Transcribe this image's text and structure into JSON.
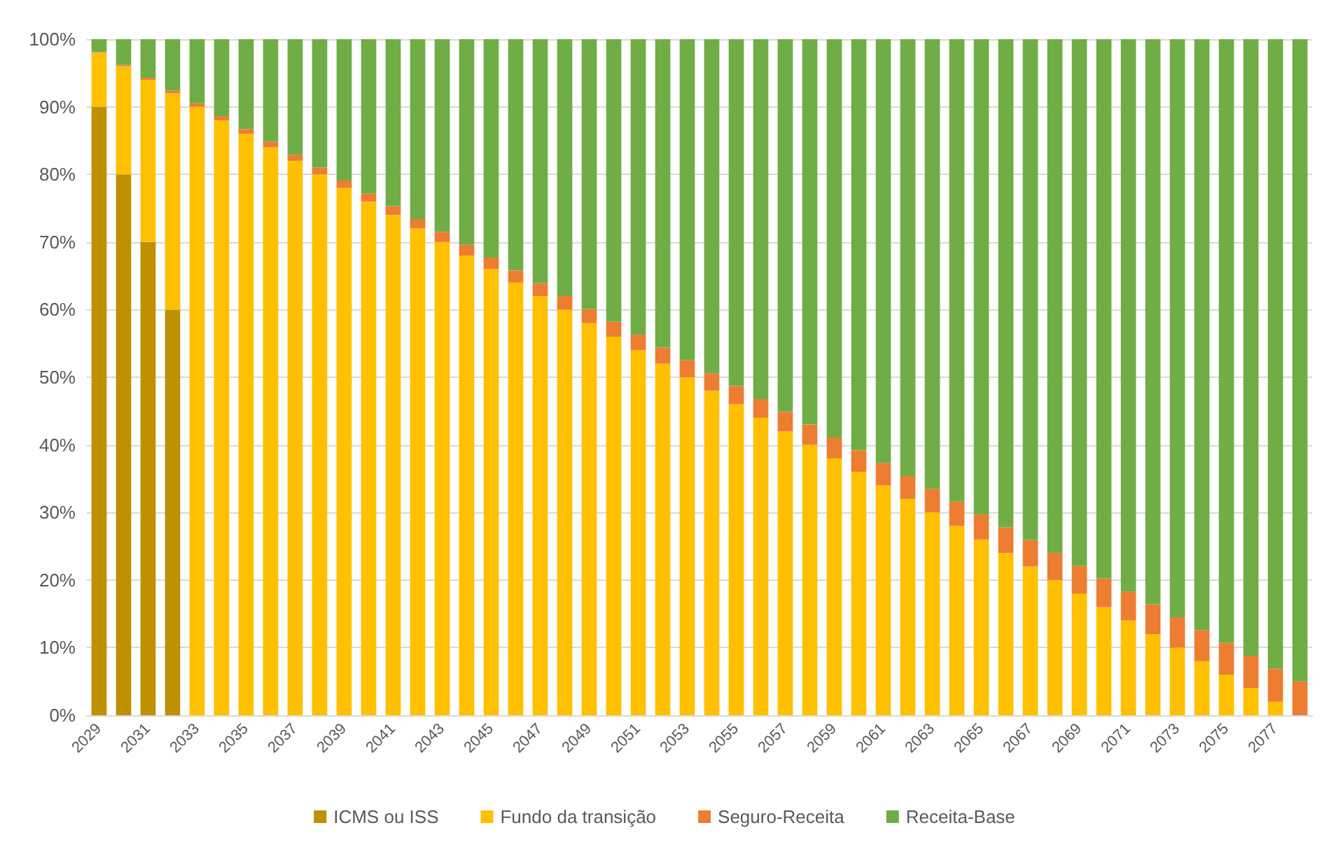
{
  "chart_data": {
    "type": "bar",
    "stacked": true,
    "grid": "y",
    "legend": "bottom",
    "categories": [
      "2029",
      null,
      "2031",
      null,
      "2033",
      null,
      "2035",
      null,
      "2037",
      null,
      "2039",
      null,
      "2041",
      null,
      "2043",
      null,
      "2045",
      null,
      "2047",
      null,
      "2049",
      null,
      "2051",
      null,
      "2053",
      null,
      "2055",
      null,
      "2057",
      null,
      "2059",
      null,
      "2061",
      null,
      "2063",
      null,
      "2065",
      null,
      "2067",
      null,
      "2069",
      null,
      "2071",
      null,
      "2073",
      null,
      "2075",
      null,
      "2077",
      null
    ],
    "ylim": [
      0,
      100
    ],
    "yticks": [
      {
        "value": 0,
        "label": "0%"
      },
      {
        "value": 10,
        "label": "10%"
      },
      {
        "value": 20,
        "label": "20%"
      },
      {
        "value": 30,
        "label": "30%"
      },
      {
        "value": 40,
        "label": "40%"
      },
      {
        "value": 50,
        "label": "50%"
      },
      {
        "value": 60,
        "label": "60%"
      },
      {
        "value": 70,
        "label": "70%"
      },
      {
        "value": 80,
        "label": "80%"
      },
      {
        "value": 90,
        "label": "90%"
      },
      {
        "value": 100,
        "label": "100%"
      }
    ],
    "series": [
      {
        "name": "ICMS ou ISS",
        "color": "#bf9000",
        "values": [
          90,
          80,
          70,
          60,
          0,
          0,
          0,
          0,
          0,
          0,
          0,
          0,
          0,
          0,
          0,
          0,
          0,
          0,
          0,
          0,
          0,
          0,
          0,
          0,
          0,
          0,
          0,
          0,
          0,
          0,
          0,
          0,
          0,
          0,
          0,
          0,
          0,
          0,
          0,
          0,
          0,
          0,
          0,
          0,
          0,
          0,
          0,
          0,
          0,
          0
        ]
      },
      {
        "name": "Fundo da transição",
        "color": "#ffc000",
        "values": [
          8,
          16,
          24,
          32,
          90,
          88,
          86,
          84,
          82,
          80,
          78,
          76,
          74,
          72,
          70,
          68,
          66,
          64,
          62,
          60,
          58,
          56,
          54,
          52,
          50,
          48,
          46,
          44,
          42,
          40,
          38,
          36,
          34,
          32,
          30,
          28,
          26,
          24,
          22,
          20,
          18,
          16,
          14,
          12,
          10,
          8,
          6,
          4,
          2,
          0
        ]
      },
      {
        "name": "Seguro-Receita",
        "color": "#ed7d31",
        "values": [
          0.1,
          0.2,
          0.3,
          0.4,
          0.5,
          0.6,
          0.7,
          0.8,
          0.9,
          1,
          1.1,
          1.2,
          1.3,
          1.4,
          1.5,
          1.6,
          1.7,
          1.8,
          1.9,
          2,
          2.1,
          2.2,
          2.3,
          2.4,
          2.5,
          2.6,
          2.7,
          2.8,
          2.9,
          3,
          3.1,
          3.2,
          3.3,
          3.4,
          3.5,
          3.6,
          3.7,
          3.8,
          3.9,
          4,
          4.1,
          4.2,
          4.3,
          4.4,
          4.5,
          4.6,
          4.7,
          4.8,
          4.9,
          5
        ]
      },
      {
        "name": "Receita-Base",
        "color": "#70ad47",
        "values": [
          1.9,
          3.8,
          5.7,
          7.6,
          9.5,
          11.4,
          13.3,
          15.2,
          17.1,
          19,
          20.9,
          22.8,
          24.7,
          26.6,
          28.5,
          30.4,
          32.3,
          34.2,
          36.1,
          38,
          39.9,
          41.8,
          43.7,
          45.6,
          47.5,
          49.4,
          51.3,
          53.2,
          55.1,
          57,
          58.9,
          60.8,
          62.7,
          64.6,
          66.5,
          68.4,
          70.3,
          72.2,
          74.1,
          76,
          77.9,
          79.8,
          81.7,
          83.6,
          85.5,
          87.4,
          89.3,
          91.2,
          93.1,
          95
        ]
      }
    ]
  }
}
